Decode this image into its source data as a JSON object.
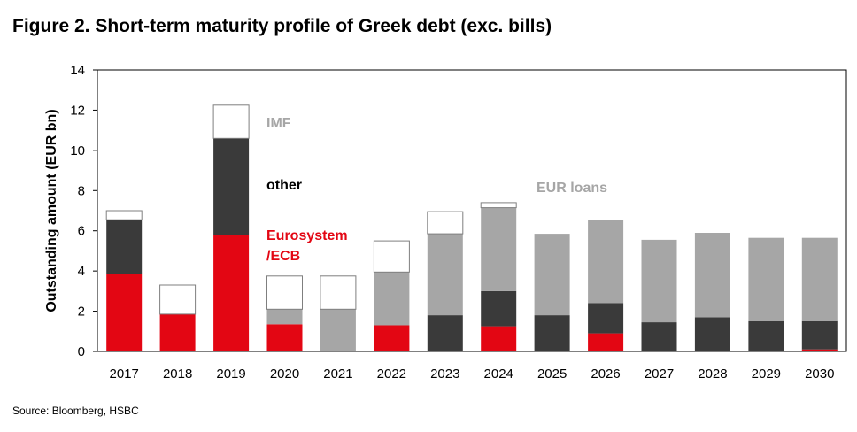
{
  "title": "Figure 2. Short-term maturity profile of Greek debt (exc. bills)",
  "source": "Source: Bloomberg, HSBC",
  "chart_data": {
    "type": "bar",
    "stacked": true,
    "categories": [
      "2017",
      "2018",
      "2019",
      "2020",
      "2021",
      "2022",
      "2023",
      "2024",
      "2025",
      "2026",
      "2027",
      "2028",
      "2029",
      "2030"
    ],
    "ylabel": "Outstanding amount (EUR bn)",
    "ylim": [
      0,
      14
    ],
    "yticks": [
      0,
      2,
      4,
      6,
      8,
      10,
      12,
      14
    ],
    "grid": false,
    "series": [
      {
        "name": "Eurosystem /ECB",
        "color": "#e30613",
        "values": [
          3.85,
          1.85,
          5.8,
          1.35,
          0,
          1.3,
          0,
          1.25,
          0,
          0.9,
          0,
          0,
          0,
          0.1
        ]
      },
      {
        "name": "other",
        "color": "#3a3a3a",
        "values": [
          2.7,
          0,
          4.8,
          0,
          0,
          0,
          1.8,
          1.75,
          1.8,
          1.5,
          1.45,
          1.7,
          1.5,
          1.4
        ]
      },
      {
        "name": "EUR loans",
        "color": "#a6a6a6",
        "values": [
          0,
          0,
          0,
          0.75,
          2.1,
          2.65,
          4.05,
          4.15,
          4.05,
          4.15,
          4.1,
          4.2,
          4.15,
          4.15
        ]
      },
      {
        "name": "IMF",
        "color": "#ffffff",
        "values": [
          0.45,
          1.45,
          1.65,
          1.65,
          1.65,
          1.55,
          1.1,
          0.25,
          0,
          0,
          0,
          0,
          0,
          0
        ]
      }
    ],
    "annotations": [
      {
        "text": "IMF",
        "color": "#a6a6a6"
      },
      {
        "text": "other",
        "color": "#000000"
      },
      {
        "text": "Eurosystem",
        "color": "#e30613"
      },
      {
        "text": "/ECB",
        "color": "#e30613"
      },
      {
        "text": "EUR loans",
        "color": "#a6a6a6"
      }
    ]
  }
}
